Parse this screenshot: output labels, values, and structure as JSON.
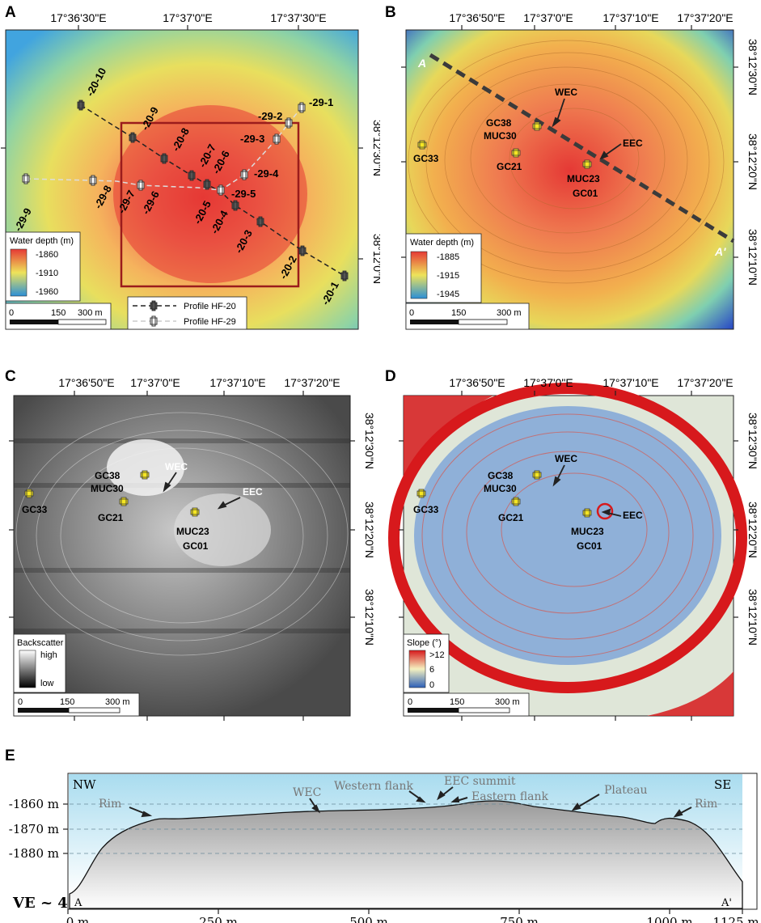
{
  "panels": {
    "A": {
      "letter": "A",
      "top_coords": [
        "17°36'30\"E",
        "17°37'0\"E",
        "17°37'30\"E"
      ],
      "right_coords": [
        "38°12'30\"N",
        "38°12'0\"N"
      ],
      "legend_title": "Water depth (m)",
      "legend_ticks": [
        "-1860",
        "-1910",
        "-1960"
      ],
      "scale": [
        "0",
        "150",
        "300 m"
      ],
      "profile_legend": [
        "Profile HF-20",
        "Profile HF-29"
      ],
      "hf20_labels": [
        "-20-10",
        "-20-9",
        "-20-8",
        "-20-7",
        "-20-6",
        "-20-5",
        "-20-4",
        "-20-3",
        "-20-2",
        "-20-1"
      ],
      "hf29_labels": [
        "-29-1",
        "-29-2",
        "-29-3",
        "-29-4",
        "-29-5",
        "-29-6",
        "-29-7",
        "-29-8",
        "-29-9"
      ]
    },
    "B": {
      "letter": "B",
      "top_coords": [
        "17°36'50\"E",
        "17°37'0\"E",
        "17°37'10\"E",
        "17°37'20\"E"
      ],
      "right_coords": [
        "38°12'30\"N",
        "38°12'20\"N",
        "38°12'10\"N"
      ],
      "legend_title": "Water depth (m)",
      "legend_ticks": [
        "-1885",
        "-1915",
        "-1945"
      ],
      "scale": [
        "0",
        "150",
        "300 m"
      ],
      "line_ends": [
        "A",
        "A'"
      ],
      "features": [
        "WEC",
        "EEC"
      ]
    },
    "C": {
      "letter": "C",
      "top_coords": [
        "17°36'50\"E",
        "17°37'0\"E",
        "17°37'10\"E",
        "17°37'20\"E"
      ],
      "right_coords": [
        "38°12'30\"N",
        "38°12'20\"N",
        "38°12'10\"N"
      ],
      "legend_title": "Backscatter",
      "legend_ticks": [
        "high",
        "low"
      ],
      "scale": [
        "0",
        "150",
        "300 m"
      ],
      "features": [
        "WEC",
        "EEC"
      ]
    },
    "D": {
      "letter": "D",
      "top_coords": [
        "17°36'50\"E",
        "17°37'0\"E",
        "17°37'10\"E",
        "17°37'20\"E"
      ],
      "right_coords": [
        "38°12'30\"N",
        "38°12'20\"N",
        "38°12'10\"N"
      ],
      "legend_title": "Slope (°)",
      "legend_ticks": [
        ">12",
        "6",
        "0"
      ],
      "scale": [
        "0",
        "150",
        "300 m"
      ],
      "features": [
        "WEC",
        "EEC"
      ]
    },
    "E": {
      "letter": "E",
      "ends": [
        "NW",
        "SE"
      ],
      "y_ticks": [
        "-1860 m",
        "-1870 m",
        "-1880 m"
      ],
      "x_ticks": [
        "0 m",
        "250 m",
        "500 m",
        "750 m",
        "1000 m",
        "1125 m"
      ],
      "ve": "VE ~ 4",
      "line_ends": [
        "A",
        "A'"
      ],
      "annotations": [
        "Rim",
        "WEC",
        "Western flank",
        "EEC summit",
        "Eastern flank",
        "Plateau",
        "Rim"
      ]
    }
  },
  "sample_sites": [
    "GC38",
    "MUC30",
    "GC33",
    "GC21",
    "MUC23",
    "GC01"
  ],
  "colors": {
    "depth_high": "#e53935",
    "depth_low": "#2b8fd6",
    "frame": "#9b1c1c",
    "text_grey": "#777777"
  }
}
